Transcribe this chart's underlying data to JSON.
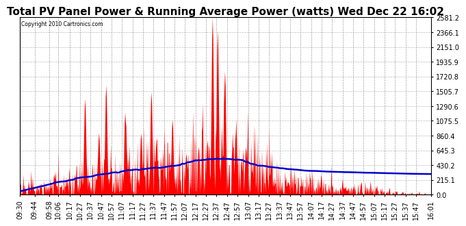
{
  "title": "Total PV Panel Power & Running Average Power (watts) Wed Dec 22 16:02",
  "copyright": "Copyright 2010 Cartronics.com",
  "background_color": "#ffffff",
  "plot_bg_color": "#ffffff",
  "grid_color": "#bbbbbb",
  "bar_color": "#ff0000",
  "line_color": "#0000cc",
  "yticks": [
    0.0,
    215.1,
    430.2,
    645.3,
    860.4,
    1075.5,
    1290.6,
    1505.7,
    1720.8,
    1935.9,
    2151.0,
    2366.1,
    2581.2
  ],
  "ymax": 2581.2,
  "title_fontsize": 11,
  "tick_fontsize": 7,
  "xtick_labels": [
    "09:30",
    "09:44",
    "09:58",
    "10:06",
    "10:17",
    "10:27",
    "10:37",
    "10:47",
    "10:57",
    "11:07",
    "11:17",
    "11:27",
    "11:37",
    "11:47",
    "11:57",
    "12:07",
    "12:17",
    "12:27",
    "12:37",
    "12:47",
    "12:57",
    "13:07",
    "13:17",
    "13:27",
    "13:37",
    "13:47",
    "13:57",
    "14:07",
    "14:17",
    "14:27",
    "14:37",
    "14:47",
    "14:57",
    "15:07",
    "15:17",
    "15:27",
    "15:37",
    "15:47",
    "16:01"
  ],
  "n_points": 800,
  "total_minutes": 391
}
